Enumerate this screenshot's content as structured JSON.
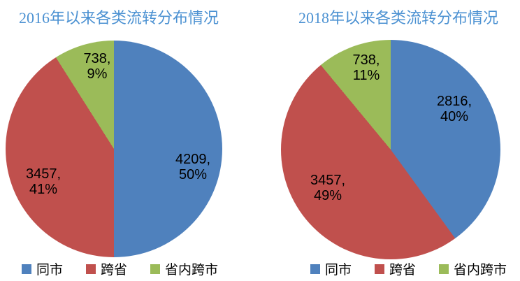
{
  "styles": {
    "title_color": "#4B91D2",
    "label_color": "#000000",
    "background": "#FFFFFF"
  },
  "chart_data": [
    {
      "id": "pie-2016",
      "type": "pie",
      "title": "2016年以来各类流转分布情况",
      "legend_position": "bottom",
      "start_angle_deg": 0,
      "direction": "clockwise",
      "slices": [
        {
          "name": "同市",
          "value": 4209,
          "pct": 50,
          "color": "#4F81BD"
        },
        {
          "name": "跨省",
          "value": 3457,
          "pct": 41,
          "color": "#C0504D"
        },
        {
          "name": "省内跨市",
          "value": 738,
          "pct": 9,
          "color": "#9BBB59"
        }
      ]
    },
    {
      "id": "pie-2018",
      "type": "pie",
      "title": "2018年以来各类流转分布情况",
      "legend_position": "bottom",
      "start_angle_deg": 0,
      "direction": "clockwise",
      "slices": [
        {
          "name": "同市",
          "value": 2816,
          "pct": 40,
          "color": "#4F81BD"
        },
        {
          "name": "跨省",
          "value": 3457,
          "pct": 49,
          "color": "#C0504D"
        },
        {
          "name": "省内跨市",
          "value": 738,
          "pct": 11,
          "color": "#9BBB59"
        }
      ]
    }
  ]
}
